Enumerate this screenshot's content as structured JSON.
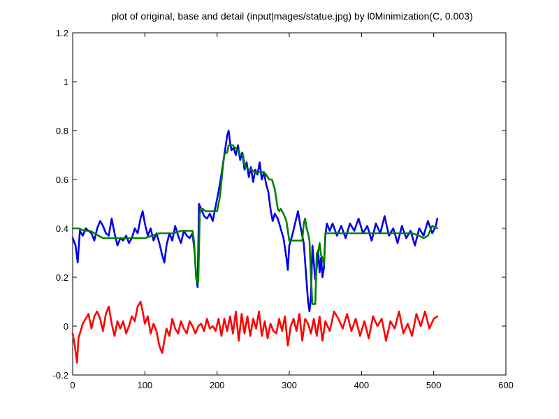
{
  "chart_data": {
    "type": "line",
    "title": "plot of original, base and detail (input|mages/statue.jpg) by l0Minimization(C, 0.003)",
    "xlabel": "",
    "ylabel": "",
    "xlim": [
      0,
      600
    ],
    "ylim": [
      -0.2,
      1.2
    ],
    "xticks": [
      0,
      100,
      200,
      300,
      400,
      500,
      600
    ],
    "yticks": [
      -0.2,
      0,
      0.2,
      0.4,
      0.6,
      0.8,
      1,
      1.2
    ],
    "xtick_labels": [
      "0",
      "100",
      "200",
      "300",
      "400",
      "500",
      "600"
    ],
    "ytick_labels": [
      "-0.2",
      "0",
      "0.2",
      "0.4",
      "0.6",
      "0.8",
      "1",
      "1.2"
    ],
    "grid": false,
    "legend": "none",
    "series": [
      {
        "color": "#0000ee",
        "x": [
          0,
          4,
          7,
          10,
          14,
          18,
          22,
          26,
          30,
          34,
          38,
          42,
          46,
          50,
          54,
          58,
          62,
          66,
          70,
          74,
          78,
          82,
          86,
          90,
          94,
          97,
          100,
          104,
          108,
          112,
          116,
          120,
          124,
          127,
          130,
          134,
          138,
          142,
          146,
          150,
          154,
          158,
          162,
          166,
          169,
          171,
          173,
          175,
          178,
          182,
          186,
          190,
          194,
          198,
          202,
          205,
          208,
          210,
          212,
          214,
          216,
          218,
          220,
          223,
          226,
          229,
          232,
          235,
          238,
          241,
          244,
          247,
          250,
          253,
          256,
          259,
          262,
          265,
          268,
          271,
          274,
          277,
          280,
          284,
          288,
          292,
          296,
          298,
          300,
          304,
          308,
          312,
          316,
          320,
          324,
          326,
          328,
          330,
          332,
          334,
          336,
          338,
          340,
          342,
          344,
          346,
          348,
          350,
          352,
          356,
          360,
          366,
          372,
          378,
          384,
          390,
          396,
          402,
          408,
          414,
          420,
          426,
          432,
          438,
          444,
          450,
          456,
          462,
          468,
          474,
          480,
          486,
          492,
          498,
          503,
          505
        ],
        "y": [
          0.36,
          0.33,
          0.26,
          0.39,
          0.37,
          0.4,
          0.39,
          0.38,
          0.35,
          0.4,
          0.43,
          0.41,
          0.38,
          0.37,
          0.44,
          0.38,
          0.33,
          0.36,
          0.35,
          0.37,
          0.34,
          0.36,
          0.4,
          0.38,
          0.44,
          0.47,
          0.42,
          0.37,
          0.4,
          0.35,
          0.38,
          0.34,
          0.29,
          0.26,
          0.33,
          0.38,
          0.35,
          0.41,
          0.37,
          0.34,
          0.39,
          0.37,
          0.36,
          0.38,
          0.3,
          0.2,
          0.16,
          0.5,
          0.48,
          0.45,
          0.44,
          0.46,
          0.43,
          0.49,
          0.55,
          0.6,
          0.66,
          0.7,
          0.74,
          0.78,
          0.8,
          0.75,
          0.72,
          0.73,
          0.7,
          0.74,
          0.68,
          0.71,
          0.64,
          0.67,
          0.61,
          0.65,
          0.59,
          0.64,
          0.62,
          0.67,
          0.6,
          0.63,
          0.58,
          0.55,
          0.48,
          0.43,
          0.46,
          0.44,
          0.4,
          0.36,
          0.28,
          0.23,
          0.33,
          0.37,
          0.42,
          0.47,
          0.4,
          0.34,
          0.18,
          0.1,
          0.06,
          0.12,
          0.33,
          0.26,
          0.19,
          0.24,
          0.31,
          0.22,
          0.28,
          0.2,
          0.24,
          0.37,
          0.42,
          0.39,
          0.42,
          0.37,
          0.41,
          0.36,
          0.42,
          0.39,
          0.44,
          0.38,
          0.41,
          0.35,
          0.42,
          0.38,
          0.45,
          0.37,
          0.4,
          0.34,
          0.41,
          0.36,
          0.39,
          0.33,
          0.4,
          0.37,
          0.43,
          0.38,
          0.41,
          0.44
        ]
      },
      {
        "color": "#008000",
        "x": [
          0,
          8,
          16,
          24,
          30,
          36,
          42,
          48,
          54,
          60,
          70,
          80,
          90,
          100,
          110,
          120,
          130,
          140,
          150,
          160,
          166,
          168,
          170,
          172,
          174,
          176,
          178,
          180,
          184,
          188,
          192,
          196,
          200,
          204,
          208,
          210,
          212,
          214,
          216,
          218,
          220,
          222,
          224,
          226,
          228,
          230,
          232,
          234,
          236,
          238,
          240,
          244,
          248,
          252,
          256,
          260,
          264,
          268,
          272,
          276,
          280,
          284,
          286,
          288,
          292,
          296,
          298,
          300,
          304,
          308,
          312,
          316,
          318,
          320,
          322,
          324,
          326,
          328,
          330,
          332,
          334,
          336,
          338,
          340,
          342,
          344,
          346,
          348,
          350,
          354,
          360,
          380,
          400,
          420,
          440,
          460,
          470,
          480,
          486,
          492,
          498,
          505
        ],
        "y": [
          0.4,
          0.4,
          0.39,
          0.39,
          0.38,
          0.37,
          0.36,
          0.36,
          0.36,
          0.36,
          0.36,
          0.36,
          0.36,
          0.36,
          0.37,
          0.38,
          0.38,
          0.38,
          0.39,
          0.39,
          0.39,
          0.35,
          0.25,
          0.18,
          0.18,
          0.46,
          0.48,
          0.48,
          0.47,
          0.47,
          0.47,
          0.47,
          0.47,
          0.53,
          0.65,
          0.7,
          0.71,
          0.71,
          0.74,
          0.74,
          0.74,
          0.74,
          0.73,
          0.73,
          0.72,
          0.72,
          0.7,
          0.7,
          0.7,
          0.66,
          0.65,
          0.64,
          0.64,
          0.63,
          0.63,
          0.63,
          0.63,
          0.62,
          0.6,
          0.6,
          0.56,
          0.48,
          0.47,
          0.48,
          0.46,
          0.43,
          0.39,
          0.35,
          0.35,
          0.35,
          0.35,
          0.35,
          0.35,
          0.42,
          0.44,
          0.4,
          0.38,
          0.35,
          0.2,
          0.09,
          0.09,
          0.09,
          0.3,
          0.3,
          0.34,
          0.29,
          0.28,
          0.25,
          0.38,
          0.38,
          0.38,
          0.38,
          0.38,
          0.38,
          0.38,
          0.38,
          0.38,
          0.37,
          0.36,
          0.37,
          0.41,
          0.4
        ]
      },
      {
        "color": "#ff0000",
        "x": [
          0,
          3,
          6,
          8,
          10,
          14,
          18,
          22,
          26,
          30,
          34,
          38,
          42,
          46,
          50,
          54,
          58,
          62,
          66,
          70,
          74,
          78,
          82,
          86,
          90,
          94,
          97,
          100,
          104,
          108,
          112,
          116,
          120,
          124,
          127,
          130,
          134,
          138,
          142,
          146,
          150,
          154,
          158,
          162,
          166,
          170,
          174,
          178,
          182,
          186,
          190,
          194,
          198,
          202,
          206,
          210,
          214,
          218,
          222,
          226,
          230,
          234,
          238,
          242,
          246,
          250,
          254,
          258,
          262,
          266,
          270,
          274,
          278,
          282,
          286,
          290,
          294,
          298,
          302,
          306,
          310,
          314,
          318,
          322,
          326,
          330,
          334,
          338,
          342,
          346,
          350,
          356,
          362,
          368,
          374,
          380,
          386,
          392,
          398,
          404,
          410,
          416,
          422,
          428,
          434,
          440,
          446,
          452,
          458,
          464,
          470,
          476,
          482,
          488,
          494,
          500,
          505
        ],
        "y": [
          -0.03,
          -0.08,
          -0.15,
          -0.05,
          -0.03,
          0.01,
          0.03,
          0.05,
          -0.01,
          0.04,
          0.06,
          0.03,
          -0.02,
          0.05,
          0.08,
          0.01,
          -0.04,
          0.02,
          -0.01,
          0.02,
          -0.03,
          0.0,
          0.04,
          0.02,
          0.08,
          0.1,
          0.06,
          0.01,
          0.04,
          -0.03,
          0.01,
          -0.02,
          -0.08,
          -0.11,
          -0.06,
          -0.01,
          -0.04,
          0.03,
          -0.01,
          -0.03,
          0.02,
          -0.01,
          -0.03,
          0.02,
          0.0,
          -0.03,
          0.0,
          0.01,
          -0.02,
          0.03,
          -0.01,
          0.0,
          -0.02,
          0.03,
          -0.04,
          0.03,
          -0.02,
          0.04,
          -0.03,
          0.06,
          -0.06,
          0.05,
          -0.03,
          0.04,
          -0.04,
          0.03,
          -0.01,
          0.06,
          -0.04,
          0.02,
          -0.05,
          0.01,
          -0.02,
          -0.03,
          0.03,
          -0.02,
          0.04,
          -0.08,
          0.0,
          0.03,
          -0.02,
          0.05,
          -0.06,
          0.03,
          0.01,
          -0.03,
          0.03,
          -0.04,
          0.04,
          -0.06,
          0.02,
          -0.02,
          0.06,
          0.03,
          -0.01,
          0.05,
          -0.02,
          0.03,
          -0.04,
          0.02,
          -0.05,
          0.04,
          0.0,
          0.03,
          -0.06,
          0.02,
          -0.01,
          0.06,
          -0.03,
          0.01,
          -0.04,
          0.05,
          0.0,
          0.06,
          -0.01,
          0.03,
          0.04
        ]
      }
    ]
  }
}
